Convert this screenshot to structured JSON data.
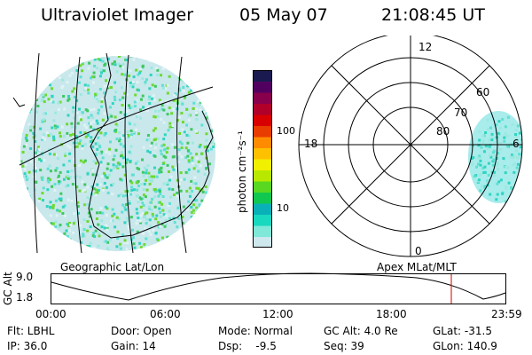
{
  "header": {
    "title": "Ultraviolet Imager",
    "date": "05 May 07",
    "time": "21:08:45 UT"
  },
  "colorbar": {
    "unit_label": "photon cm⁻²s⁻¹",
    "ticks": [
      "100",
      "10"
    ],
    "colors": [
      "#cfe8ee",
      "#7fe8d8",
      "#18d8c0",
      "#0ab0b8",
      "#10c850",
      "#58d820",
      "#b8e800",
      "#f0f000",
      "#ffc000",
      "#ff8c00",
      "#e83c00",
      "#d80000",
      "#b0002a",
      "#88004c",
      "#520060",
      "#1a1a50"
    ]
  },
  "geo_map": {
    "label": "Geographic Lat/Lon"
  },
  "polar": {
    "label": "Apex MLat/MLT",
    "mlt_labels": [
      "12",
      "18",
      "6",
      "0"
    ],
    "lat_labels": [
      "60",
      "70",
      "80"
    ]
  },
  "altitude_plot": {
    "ylabel": "GC Alt",
    "y_ticks": [
      "9.0",
      "1.8"
    ],
    "x_ticks": [
      "00:00",
      "06:00",
      "12:00",
      "18:00",
      "23:59"
    ]
  },
  "footer": {
    "col1": [
      "Flt: LBHL",
      "IP: 36.0"
    ],
    "col2": [
      "Door: Open",
      "Gain: 14"
    ],
    "col3": [
      "Mode: Normal",
      "Dsp:    -9.5"
    ],
    "col4": [
      "GC Alt: 4.0 Re",
      "Seq: 39"
    ],
    "col5": [
      "GLat: -31.5",
      "GLon: 140.9"
    ]
  }
}
